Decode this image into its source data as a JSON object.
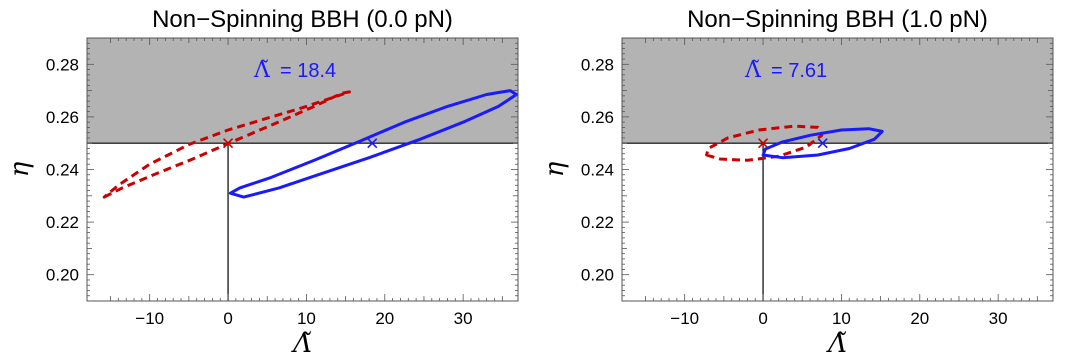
{
  "chart_data": [
    {
      "type": "scatter",
      "title": "Non−Spinning BBH (0.0 pN)",
      "xlabel": "Λ̃",
      "ylabel": "η",
      "xlim": [
        -18,
        37
      ],
      "ylim": [
        0.19,
        0.29
      ],
      "xticks": [
        -10,
        0,
        10,
        20,
        30
      ],
      "xtick_labels": [
        "−10",
        "0",
        "10",
        "20",
        "30"
      ],
      "yticks": [
        0.2,
        0.22,
        0.24,
        0.26,
        0.28
      ],
      "ytick_labels": [
        "0.20",
        "0.22",
        "0.24",
        "0.26",
        "0.28"
      ],
      "shaded_region": {
        "y_from": 0.25,
        "y_to": 0.29,
        "color": "#b3b3b3"
      },
      "eta_line": 0.25,
      "lambda_line": 0,
      "annotation": {
        "symbol": "Λ̃",
        "text": "= 18.4"
      },
      "series": [
        {
          "color": "#cc0000",
          "style": "dashed",
          "marker": {
            "x": 0,
            "y": 0.25
          },
          "ellipse": [
            [
              -15.8,
              0.2295
            ],
            [
              -13.5,
              0.233
            ],
            [
              -9.5,
              0.238
            ],
            [
              -4.5,
              0.244
            ],
            [
              0.5,
              0.2505
            ],
            [
              6.0,
              0.2575
            ],
            [
              11.0,
              0.264
            ],
            [
              14.5,
              0.269
            ],
            [
              15.5,
              0.2695
            ],
            [
              13.5,
              0.2675
            ],
            [
              9.5,
              0.2635
            ],
            [
              5.0,
              0.2595
            ],
            [
              0,
              0.255
            ],
            [
              -5.0,
              0.2495
            ],
            [
              -10.0,
              0.242
            ],
            [
              -14.0,
              0.234
            ],
            [
              -15.8,
              0.2295
            ]
          ]
        },
        {
          "color": "#1a1aff",
          "style": "solid",
          "marker": {
            "x": 18.4,
            "y": 0.25
          },
          "ellipse": [
            [
              0.3,
              0.231
            ],
            [
              2.0,
              0.2295
            ],
            [
              6.5,
              0.233
            ],
            [
              12.0,
              0.2385
            ],
            [
              18.0,
              0.2445
            ],
            [
              24.5,
              0.2515
            ],
            [
              30.0,
              0.258
            ],
            [
              34.5,
              0.264
            ],
            [
              36.8,
              0.2685
            ],
            [
              36.0,
              0.27
            ],
            [
              33.0,
              0.2685
            ],
            [
              28.0,
              0.264
            ],
            [
              22.5,
              0.258
            ],
            [
              17.0,
              0.251
            ],
            [
              11.0,
              0.2435
            ],
            [
              5.5,
              0.237
            ],
            [
              1.5,
              0.233
            ],
            [
              0.3,
              0.231
            ]
          ]
        }
      ]
    },
    {
      "type": "scatter",
      "title": "Non−Spinning BBH (1.0 pN)",
      "xlabel": "Λ̃",
      "ylabel": "η",
      "xlim": [
        -18,
        37
      ],
      "ylim": [
        0.19,
        0.29
      ],
      "xticks": [
        -10,
        0,
        10,
        20,
        30
      ],
      "xtick_labels": [
        "−10",
        "0",
        "10",
        "20",
        "30"
      ],
      "yticks": [
        0.2,
        0.22,
        0.24,
        0.26,
        0.28
      ],
      "ytick_labels": [
        "0.20",
        "0.22",
        "0.24",
        "0.26",
        "0.28"
      ],
      "shaded_region": {
        "y_from": 0.25,
        "y_to": 0.29,
        "color": "#b3b3b3"
      },
      "eta_line": 0.25,
      "lambda_line": 0,
      "annotation": {
        "symbol": "Λ̃",
        "text": "= 7.61"
      },
      "series": [
        {
          "color": "#cc0000",
          "style": "dashed",
          "marker": {
            "x": 0,
            "y": 0.25
          },
          "ellipse": [
            [
              -7.2,
              0.2455
            ],
            [
              -5.5,
              0.244
            ],
            [
              -2.0,
              0.2435
            ],
            [
              2.0,
              0.245
            ],
            [
              5.5,
              0.2485
            ],
            [
              7.5,
              0.253
            ],
            [
              7.0,
              0.256
            ],
            [
              4.0,
              0.2565
            ],
            [
              -0.5,
              0.255
            ],
            [
              -4.5,
              0.252
            ],
            [
              -7.0,
              0.248
            ],
            [
              -7.2,
              0.2455
            ]
          ]
        },
        {
          "color": "#1a1aff",
          "style": "solid",
          "marker": {
            "x": 7.61,
            "y": 0.25
          },
          "ellipse": [
            [
              0.0,
              0.2455
            ],
            [
              2.5,
              0.2445
            ],
            [
              7.0,
              0.2455
            ],
            [
              11.0,
              0.248
            ],
            [
              14.2,
              0.2515
            ],
            [
              15.2,
              0.2545
            ],
            [
              13.5,
              0.2555
            ],
            [
              10.0,
              0.255
            ],
            [
              6.0,
              0.253
            ],
            [
              2.5,
              0.2505
            ],
            [
              0.3,
              0.2478
            ],
            [
              0.0,
              0.2455
            ]
          ]
        }
      ]
    }
  ]
}
